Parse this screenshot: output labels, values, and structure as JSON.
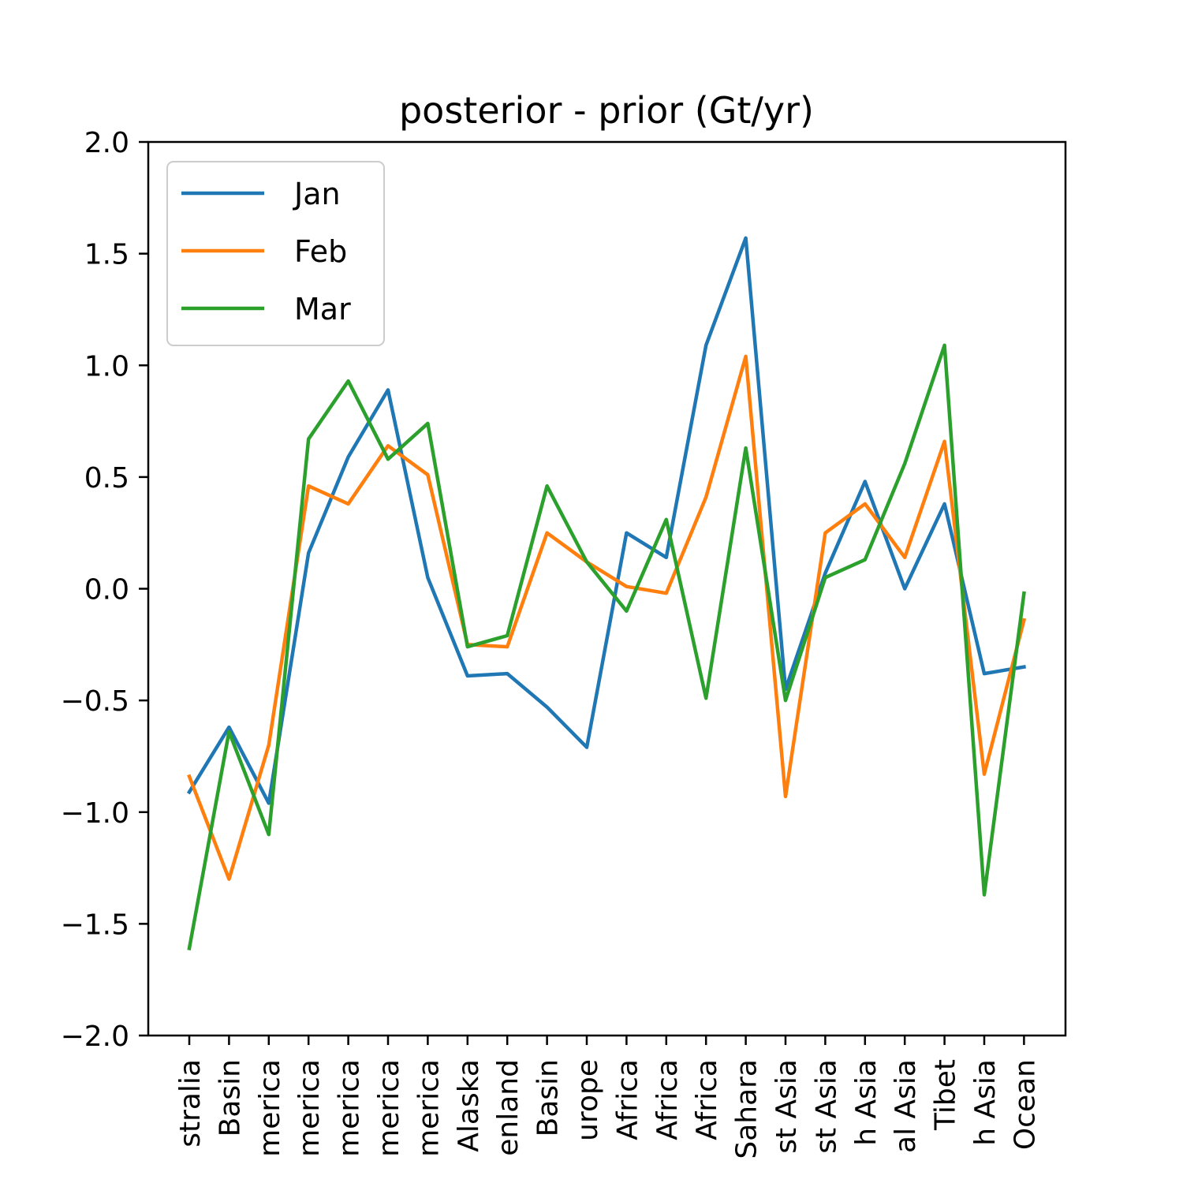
{
  "chart_data": {
    "type": "line",
    "title": "posterior - prior (Gt/yr)",
    "xlabel": "",
    "ylabel": "",
    "ylim": [
      -2.0,
      2.0
    ],
    "yticks": [
      "2.0",
      "1.5",
      "1.0",
      "0.5",
      "0.0",
      "−0.5",
      "−1.0",
      "−1.5",
      "−2.0"
    ],
    "ytick_values": [
      2.0,
      1.5,
      1.0,
      0.5,
      0.0,
      -0.5,
      -1.0,
      -1.5,
      -2.0
    ],
    "categories": [
      "stralia",
      "Basin",
      "merica",
      "merica",
      "merica",
      "merica",
      "merica",
      "Alaska",
      "enland",
      "Basin",
      "urope",
      "Africa",
      "Africa",
      "Africa",
      "Sahara",
      "st Asia",
      "st Asia",
      "h Asia",
      "al Asia",
      "Tibet",
      "h Asia",
      "Ocean"
    ],
    "grid": false,
    "legend_position": "top-left",
    "series": [
      {
        "name": "Jan",
        "color": "#1f77b4",
        "values": [
          -0.91,
          -0.62,
          -0.96,
          0.16,
          0.59,
          0.89,
          0.05,
          -0.39,
          -0.38,
          -0.53,
          -0.71,
          0.25,
          0.14,
          1.09,
          1.57,
          -0.45,
          0.07,
          0.48,
          0.0,
          0.38,
          -0.38,
          -0.35
        ]
      },
      {
        "name": "Feb",
        "color": "#ff7f0e",
        "values": [
          -0.84,
          -1.3,
          -0.7,
          0.46,
          0.38,
          0.64,
          0.51,
          -0.25,
          -0.26,
          0.25,
          0.12,
          0.01,
          -0.02,
          0.41,
          1.04,
          -0.93,
          0.25,
          0.38,
          0.14,
          0.66,
          -0.83,
          -0.14
        ]
      },
      {
        "name": "Mar",
        "color": "#2ca02c",
        "values": [
          -1.61,
          -0.64,
          -1.1,
          0.67,
          0.93,
          0.58,
          0.74,
          -0.26,
          -0.21,
          0.46,
          0.12,
          -0.1,
          0.31,
          -0.49,
          0.63,
          -0.5,
          0.05,
          0.13,
          0.56,
          1.09,
          -1.37,
          -0.02
        ]
      }
    ]
  }
}
